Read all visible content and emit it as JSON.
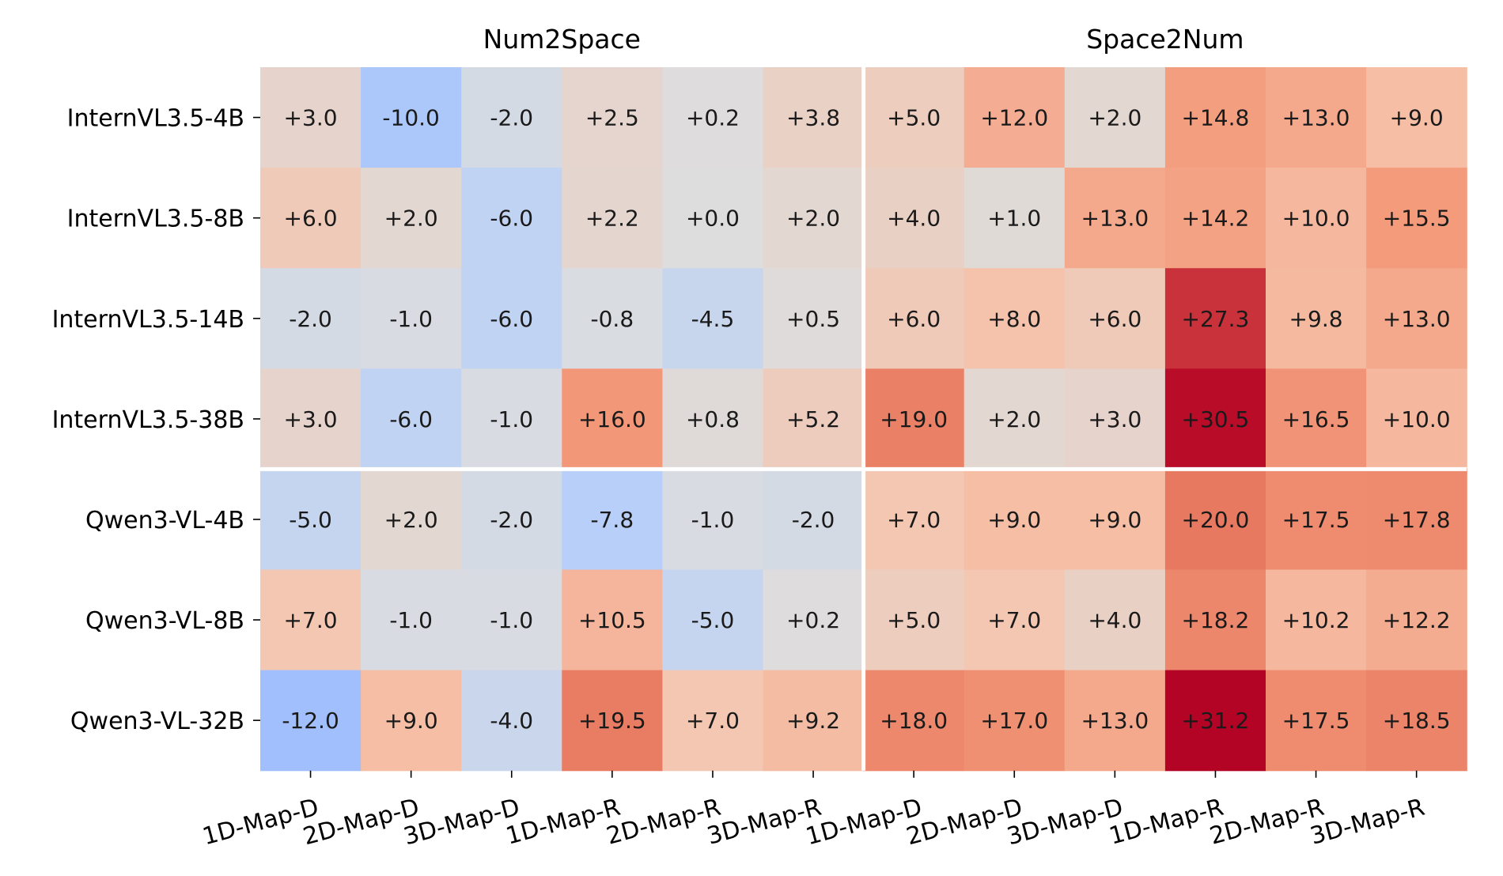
{
  "chart_data": {
    "type": "heatmap",
    "colormap": "coolwarm",
    "value_range": [
      -31.2,
      31.2
    ],
    "groups": [
      {
        "title": "Num2Space",
        "columns": [
          "1D-Map-D",
          "2D-Map-D",
          "3D-Map-D",
          "1D-Map-R",
          "2D-Map-R",
          "3D-Map-R"
        ]
      },
      {
        "title": "Space2Num",
        "columns": [
          "1D-Map-D",
          "2D-Map-D",
          "3D-Map-D",
          "1D-Map-R",
          "2D-Map-R",
          "3D-Map-R"
        ]
      }
    ],
    "rows": [
      "InternVL3.5-4B",
      "InternVL3.5-8B",
      "InternVL3.5-14B",
      "InternVL3.5-38B",
      "Qwen3-VL-4B",
      "Qwen3-VL-8B",
      "Qwen3-VL-32B"
    ],
    "row_groups": [
      [
        "InternVL3.5-4B",
        "InternVL3.5-8B",
        "InternVL3.5-14B",
        "InternVL3.5-38B"
      ],
      [
        "Qwen3-VL-4B",
        "Qwen3-VL-8B",
        "Qwen3-VL-32B"
      ]
    ],
    "values": [
      [
        3.0,
        -10.0,
        -2.0,
        2.5,
        0.2,
        3.8,
        5.0,
        12.0,
        2.0,
        14.8,
        13.0,
        9.0
      ],
      [
        6.0,
        2.0,
        -6.0,
        2.2,
        0.0,
        2.0,
        4.0,
        1.0,
        13.0,
        14.2,
        10.0,
        15.5
      ],
      [
        -2.0,
        -1.0,
        -6.0,
        -0.8,
        -4.5,
        0.5,
        6.0,
        8.0,
        6.0,
        27.3,
        9.8,
        13.0
      ],
      [
        3.0,
        -6.0,
        -1.0,
        16.0,
        0.8,
        5.2,
        19.0,
        2.0,
        3.0,
        30.5,
        16.5,
        10.0
      ],
      [
        -5.0,
        2.0,
        -2.0,
        -7.8,
        -1.0,
        -2.0,
        7.0,
        9.0,
        9.0,
        20.0,
        17.5,
        17.8
      ],
      [
        7.0,
        -1.0,
        -1.0,
        10.5,
        -5.0,
        0.2,
        5.0,
        7.0,
        4.0,
        18.2,
        10.2,
        12.2
      ],
      [
        -12.0,
        9.0,
        -4.0,
        19.5,
        7.0,
        9.2,
        18.0,
        17.0,
        13.0,
        31.2,
        17.5,
        18.5
      ]
    ],
    "labels": [
      [
        "+3.0",
        "-10.0",
        "-2.0",
        "+2.5",
        "+0.2",
        "+3.8",
        "+5.0",
        "+12.0",
        "+2.0",
        "+14.8",
        "+13.0",
        "+9.0"
      ],
      [
        "+6.0",
        "+2.0",
        "-6.0",
        "+2.2",
        "+0.0",
        "+2.0",
        "+4.0",
        "+1.0",
        "+13.0",
        "+14.2",
        "+10.0",
        "+15.5"
      ],
      [
        "-2.0",
        "-1.0",
        "-6.0",
        "-0.8",
        "-4.5",
        "+0.5",
        "+6.0",
        "+8.0",
        "+6.0",
        "+27.3",
        "+9.8",
        "+13.0"
      ],
      [
        "+3.0",
        "-6.0",
        "-1.0",
        "+16.0",
        "+0.8",
        "+5.2",
        "+19.0",
        "+2.0",
        "+3.0",
        "+30.5",
        "+16.5",
        "+10.0"
      ],
      [
        "-5.0",
        "+2.0",
        "-2.0",
        "-7.8",
        "-1.0",
        "-2.0",
        "+7.0",
        "+9.0",
        "+9.0",
        "+20.0",
        "+17.5",
        "+17.8"
      ],
      [
        "+7.0",
        "-1.0",
        "-1.0",
        "+10.5",
        "-5.0",
        "+0.2",
        "+5.0",
        "+7.0",
        "+4.0",
        "+18.2",
        "+10.2",
        "+12.2"
      ],
      [
        "-12.0",
        "+9.0",
        "-4.0",
        "+19.5",
        "+7.0",
        "+9.2",
        "+18.0",
        "+17.0",
        "+13.0",
        "+31.2",
        "+17.5",
        "+18.5"
      ]
    ],
    "legend": "none",
    "grid": false
  }
}
